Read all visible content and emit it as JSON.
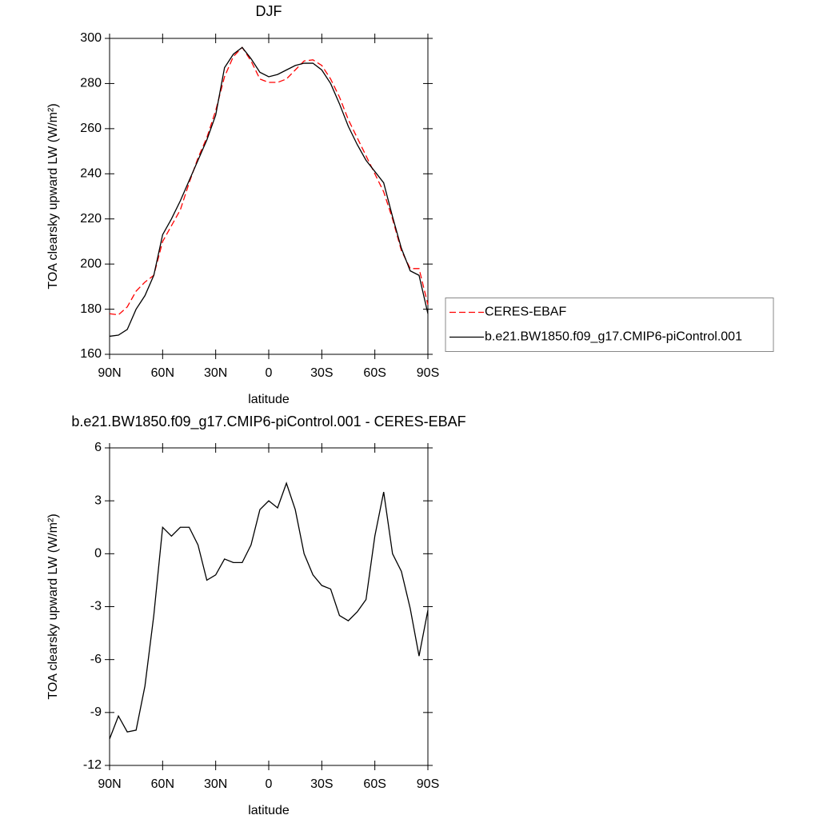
{
  "chart_data": [
    {
      "type": "line",
      "title": "DJF",
      "x_label": "latitude",
      "y_label": "TOA clearsky upward LW (W/m²)",
      "x": [
        90,
        85,
        80,
        75,
        70,
        65,
        60,
        55,
        50,
        45,
        40,
        35,
        30,
        25,
        20,
        15,
        10,
        5,
        0,
        -5,
        -10,
        -15,
        -20,
        -25,
        -30,
        -35,
        -40,
        -45,
        -50,
        -55,
        -60,
        -65,
        -70,
        -75,
        -80,
        -85,
        -90
      ],
      "xlim": [
        90,
        -90
      ],
      "xticks": [
        {
          "value": 90,
          "label": "90N"
        },
        {
          "value": 60,
          "label": "60N"
        },
        {
          "value": 30,
          "label": "30N"
        },
        0,
        {
          "value": -30,
          "label": "30S"
        },
        {
          "value": -60,
          "label": "60S"
        },
        {
          "value": -90,
          "label": "90S"
        }
      ],
      "ylim": [
        160,
        300
      ],
      "yticks": [
        160,
        180,
        200,
        220,
        240,
        260,
        280,
        300
      ],
      "grid": false,
      "legend": "right",
      "series": [
        {
          "name": "CERES-EBAF",
          "color": "#ff0000",
          "linestyle": "dashed",
          "values": [
            178,
            177.5,
            181,
            188,
            192,
            195,
            210,
            217,
            224,
            236,
            247,
            256,
            268,
            283,
            292,
            296,
            290,
            282,
            280.5,
            280.5,
            282,
            286,
            290,
            290.5,
            288,
            282,
            274,
            264,
            256,
            248,
            240,
            232,
            220,
            206,
            198,
            198,
            182
          ]
        },
        {
          "name": "b.e21.BW1850.f09_g17.CMIP6-piControl.001",
          "color": "#000000",
          "linestyle": "solid",
          "values": [
            168,
            168.5,
            171,
            180,
            186,
            195,
            213,
            220,
            228,
            237,
            246,
            255,
            266,
            287,
            293,
            296,
            291,
            285,
            283,
            284,
            286,
            288,
            289,
            289,
            286,
            280,
            271,
            261,
            253,
            246,
            241,
            236,
            221,
            207,
            197,
            195,
            178
          ]
        }
      ]
    },
    {
      "type": "line",
      "title": "b.e21.BW1850.f09_g17.CMIP6-piControl.001 - CERES-EBAF",
      "x_label": "latitude",
      "y_label": "TOA clearsky upward LW (W/m²)",
      "x": [
        90,
        85,
        80,
        75,
        70,
        65,
        60,
        55,
        50,
        45,
        40,
        35,
        30,
        25,
        20,
        15,
        10,
        5,
        0,
        -5,
        -10,
        -15,
        -20,
        -25,
        -30,
        -35,
        -40,
        -45,
        -50,
        -55,
        -60,
        -65,
        -70,
        -75,
        -80,
        -85,
        -90
      ],
      "xlim": [
        90,
        -90
      ],
      "xticks": [
        {
          "value": 90,
          "label": "90N"
        },
        {
          "value": 60,
          "label": "60N"
        },
        {
          "value": 30,
          "label": "30N"
        },
        0,
        {
          "value": -30,
          "label": "30S"
        },
        {
          "value": -60,
          "label": "60S"
        },
        {
          "value": -90,
          "label": "90S"
        }
      ],
      "ylim": [
        -12,
        6
      ],
      "yticks": [
        -12,
        -9,
        -6,
        -3,
        0,
        3,
        6
      ],
      "grid": false,
      "series": [
        {
          "color": "#000000",
          "linestyle": "solid",
          "values": [
            -10.5,
            -9.2,
            -10.1,
            -10,
            -7.5,
            -3.5,
            1.5,
            1.0,
            1.5,
            1.5,
            0.5,
            -1.5,
            -1.2,
            -0.3,
            -0.5,
            -0.5,
            0.5,
            2.5,
            3.0,
            2.6,
            4.0,
            2.5,
            0,
            -1.2,
            -1.8,
            -2.0,
            -3.5,
            -3.8,
            -3.3,
            -2.6,
            1.0,
            3.5,
            0,
            -1,
            -3.1,
            -5.8,
            -3.2
          ]
        }
      ]
    }
  ]
}
